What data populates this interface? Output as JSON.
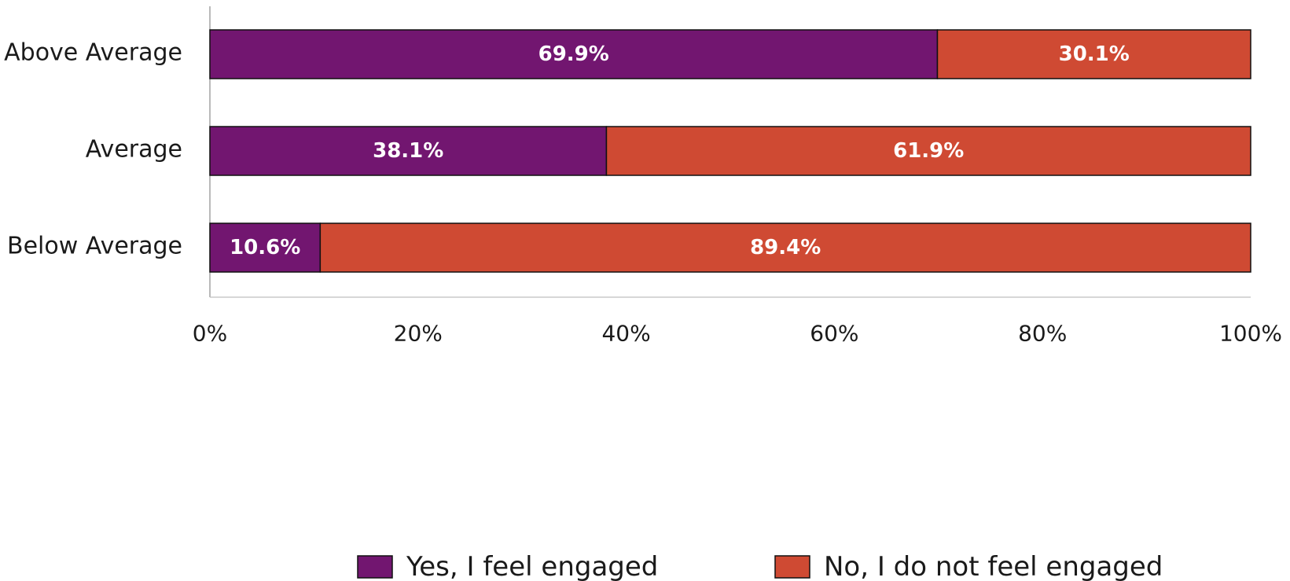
{
  "chart_data": {
    "type": "bar",
    "orientation": "horizontal",
    "stacked": true,
    "categories": [
      "Above Average",
      "Average",
      "Below Average"
    ],
    "series": [
      {
        "name": "Yes, I feel engaged",
        "color": "#721670",
        "values": [
          69.9,
          38.1,
          10.6
        ],
        "labels": [
          "69.9%",
          "38.1%",
          "10.6%"
        ]
      },
      {
        "name": "No, I do not feel engaged",
        "color": "#cf4a33",
        "values": [
          30.1,
          61.9,
          89.4
        ],
        "labels": [
          "30.1%",
          "61.9%",
          "89.4%"
        ]
      }
    ],
    "xlim": [
      0,
      100
    ],
    "x_ticks": [
      "0%",
      "20%",
      "40%",
      "60%",
      "80%",
      "100%"
    ],
    "grid": false,
    "legend_position": "bottom"
  }
}
